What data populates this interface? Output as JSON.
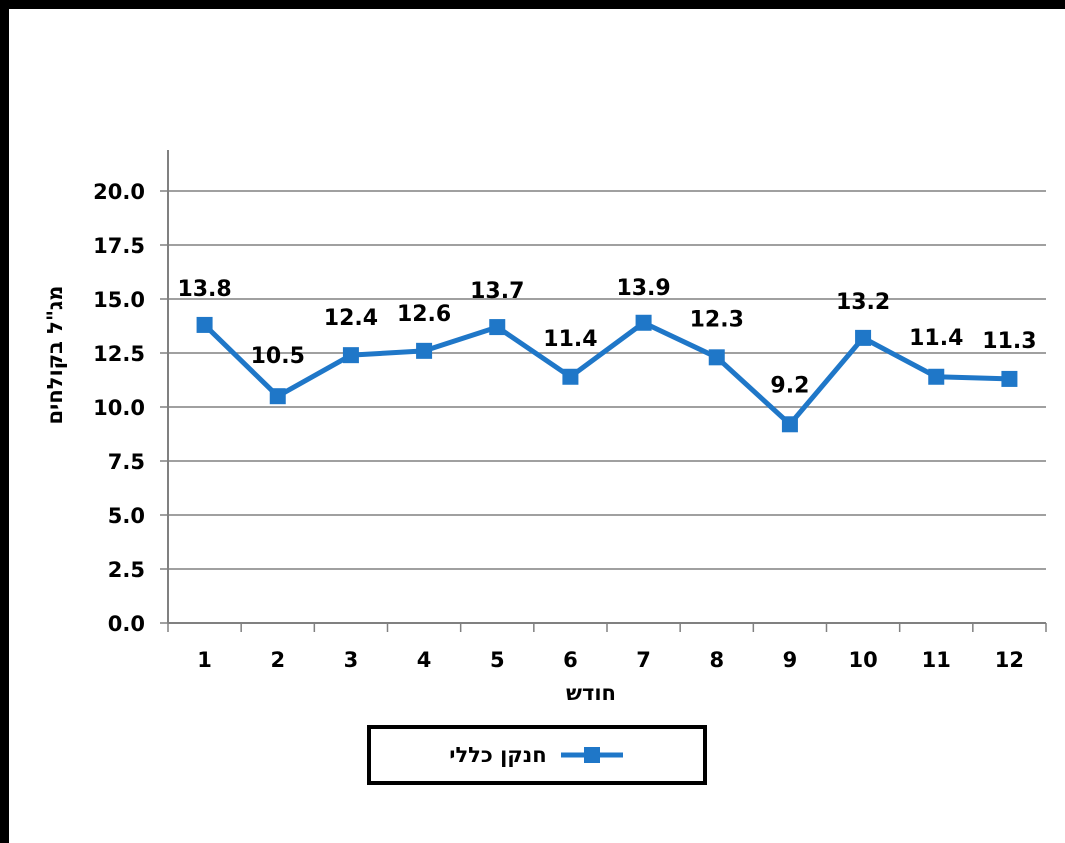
{
  "chart_data": {
    "type": "line",
    "title": "",
    "xlabel": "חודש",
    "ylabel": "מג\"ל  בקולחים",
    "categories": [
      "1",
      "2",
      "3",
      "4",
      "5",
      "6",
      "7",
      "8",
      "9",
      "10",
      "11",
      "12"
    ],
    "series": [
      {
        "name": "חנקן כללי",
        "values": [
          13.8,
          10.5,
          12.4,
          12.6,
          13.7,
          11.4,
          13.9,
          12.3,
          9.2,
          13.2,
          11.4,
          11.3
        ],
        "color": "#1f77c8",
        "marker": "square"
      }
    ],
    "data_labels": [
      "13.8",
      "10.5",
      "12.4",
      "12.6",
      "13.7",
      "11.4",
      "13.9",
      "12.3",
      "9.2",
      "13.2",
      "11.4",
      "11.3"
    ],
    "ylim": [
      0,
      20
    ],
    "yticks": [
      "0.0",
      "2.5",
      "5.0",
      "7.5",
      "10.0",
      "12.5",
      "15.0",
      "17.5",
      "20.0"
    ],
    "grid": true,
    "legend_position": "bottom"
  }
}
